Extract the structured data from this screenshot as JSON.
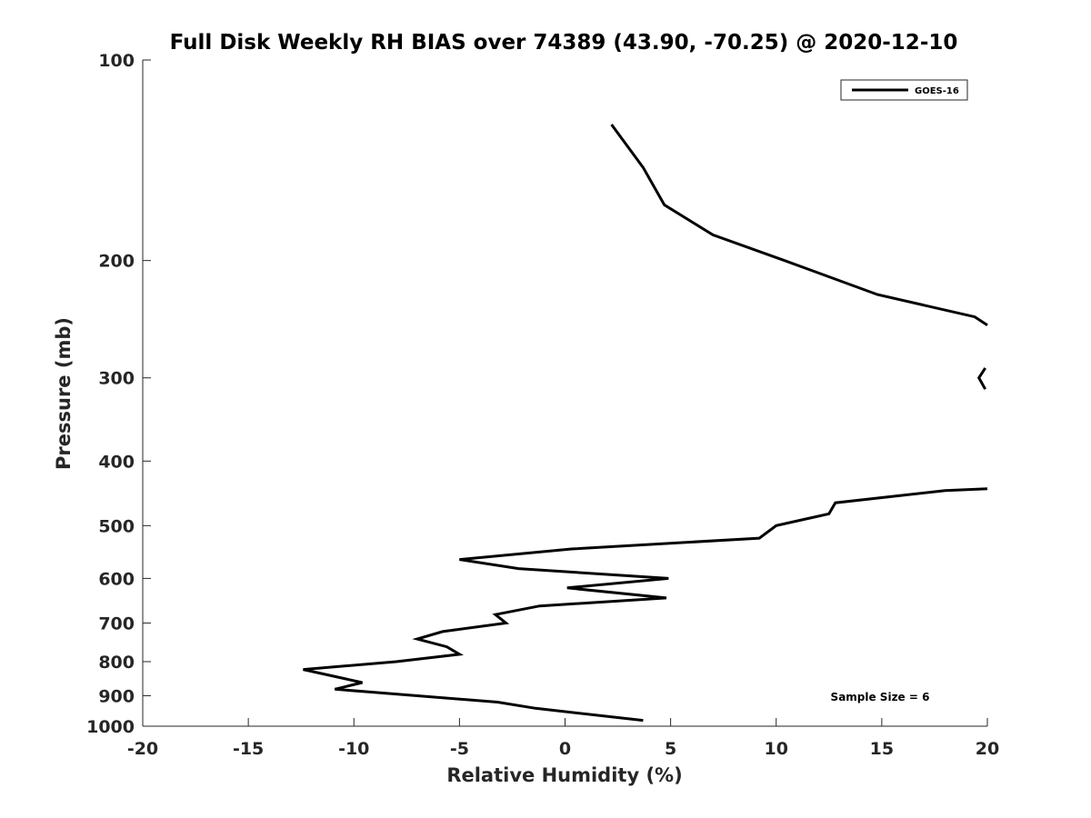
{
  "chart_data": {
    "type": "line",
    "title": "Full Disk Weekly RH BIAS over 74389 (43.90, -70.25) @ 2020-12-10",
    "xlabel": "Relative Humidity (%)",
    "ylabel": "Pressure (mb)",
    "xlim": [
      -20,
      20
    ],
    "ylim": [
      100,
      1000
    ],
    "y_scale": "log",
    "y_reversed": true,
    "grid": false,
    "legend_position": "top-right",
    "xticks": [
      "-20",
      "-15",
      "-10",
      "-5",
      "0",
      "5",
      "10",
      "15",
      "20"
    ],
    "xtick_values": [
      -20,
      -15,
      -10,
      -5,
      0,
      5,
      10,
      15,
      20
    ],
    "yticks": [
      "100",
      "200",
      "300",
      "400",
      "500",
      "600",
      "700",
      "800",
      "900",
      "1000"
    ],
    "ytick_values": [
      100,
      200,
      300,
      400,
      500,
      600,
      700,
      800,
      900,
      1000
    ],
    "annotation": "Sample Size = 6",
    "series": [
      {
        "name": "GOES-16",
        "color": "#000000",
        "segments": [
          [
            {
              "x": 2.2,
              "y": 125
            },
            {
              "x": 3.7,
              "y": 145
            },
            {
              "x": 4.7,
              "y": 165
            },
            {
              "x": 7.0,
              "y": 183
            },
            {
              "x": 10.4,
              "y": 200
            },
            {
              "x": 14.8,
              "y": 225
            },
            {
              "x": 19.4,
              "y": 243
            },
            {
              "x": 20.0,
              "y": 250
            }
          ],
          [
            {
              "x": 19.9,
              "y": 290
            },
            {
              "x": 19.6,
              "y": 300
            },
            {
              "x": 19.9,
              "y": 312
            }
          ],
          [
            {
              "x": 20.0,
              "y": 440
            },
            {
              "x": 18.0,
              "y": 443
            },
            {
              "x": 12.8,
              "y": 462
            },
            {
              "x": 12.5,
              "y": 480
            },
            {
              "x": 10.0,
              "y": 500
            },
            {
              "x": 9.2,
              "y": 522
            },
            {
              "x": 0.3,
              "y": 542
            },
            {
              "x": -5.0,
              "y": 562
            },
            {
              "x": -2.2,
              "y": 580
            },
            {
              "x": 4.9,
              "y": 600
            },
            {
              "x": 0.1,
              "y": 620
            },
            {
              "x": 4.8,
              "y": 642
            },
            {
              "x": -1.2,
              "y": 660
            },
            {
              "x": -3.3,
              "y": 680
            },
            {
              "x": -2.8,
              "y": 700
            },
            {
              "x": -5.8,
              "y": 721
            },
            {
              "x": -7.0,
              "y": 740
            },
            {
              "x": -5.6,
              "y": 760
            },
            {
              "x": -5.0,
              "y": 780
            },
            {
              "x": -8.0,
              "y": 800
            },
            {
              "x": -12.4,
              "y": 822
            },
            {
              "x": -9.6,
              "y": 860
            },
            {
              "x": -10.9,
              "y": 880
            },
            {
              "x": -3.2,
              "y": 920
            },
            {
              "x": -1.4,
              "y": 940
            },
            {
              "x": 3.7,
              "y": 980
            }
          ]
        ]
      }
    ]
  }
}
